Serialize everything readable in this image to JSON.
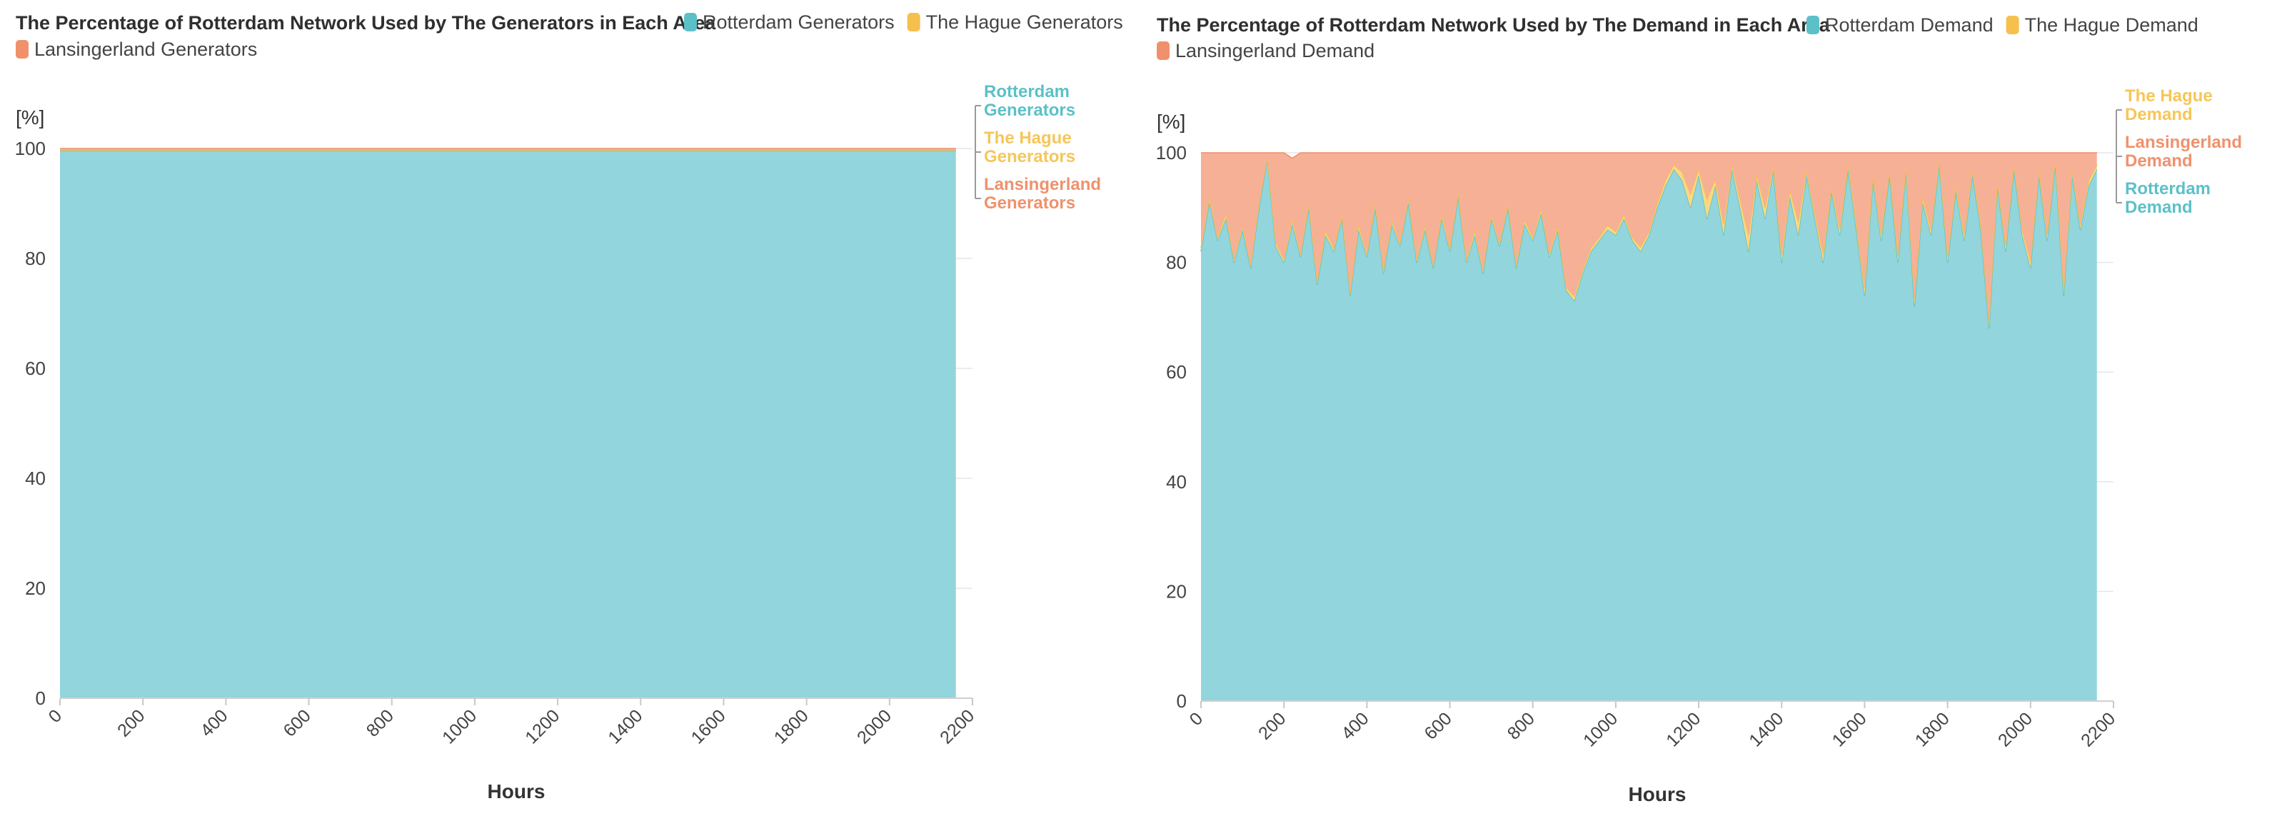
{
  "chart_data": [
    {
      "type": "area",
      "stacked": true,
      "title": "The Percentage of Rotterdam Network Used by The Generators in Each Area",
      "xlabel": "Hours",
      "ylabel": "[%]",
      "xlim": [
        0,
        2200
      ],
      "ylim": [
        0,
        100
      ],
      "xticks": [
        0,
        200,
        400,
        600,
        800,
        1000,
        1200,
        1400,
        1600,
        1800,
        2000,
        2200
      ],
      "yticks": [
        0,
        20,
        40,
        60,
        80,
        100
      ],
      "x_end": 2160,
      "grid": true,
      "legend": "top",
      "legend_items": [
        "Rotterdam Generators",
        "The Hague Generators",
        "Lansingerland Generators"
      ],
      "series": [
        {
          "name": "Rotterdam Generators",
          "color": "#93d5dc",
          "line_color": "#5cc0c8",
          "label_color": "#5cc0c8",
          "label_lines": [
            "Rotterdam",
            "Generators"
          ],
          "x": [
            0,
            2160
          ],
          "values": [
            99.6,
            99.6
          ]
        },
        {
          "name": "The Hague Generators",
          "color": "#fbd87f",
          "line_color": "#f5c04d",
          "label_color": "#f6c65a",
          "label_lines": [
            "The Hague",
            "Generators"
          ],
          "x": [
            0,
            2160
          ],
          "values": [
            0.1,
            0.1
          ]
        },
        {
          "name": "Lansingerland Generators",
          "color": "#f6b096",
          "line_color": "#f0916c",
          "label_color": "#f0916c",
          "label_lines": [
            "Lansingerland",
            "Generators"
          ],
          "x": [
            0,
            2160
          ],
          "values": [
            0.3,
            0.3
          ]
        }
      ],
      "end_label_order": [
        "Rotterdam Generators",
        "The Hague Generators",
        "Lansingerland Generators"
      ]
    },
    {
      "type": "area",
      "stacked": true,
      "title": "The Percentage of Rotterdam Network Used by The Demand in Each Area",
      "xlabel": "Hours",
      "ylabel": "[%]",
      "xlim": [
        0,
        2200
      ],
      "ylim": [
        0,
        100
      ],
      "xticks": [
        0,
        200,
        400,
        600,
        800,
        1000,
        1200,
        1400,
        1600,
        1800,
        2000,
        2200
      ],
      "yticks": [
        0,
        20,
        40,
        60,
        80,
        100
      ],
      "x_end": 2160,
      "grid": true,
      "legend": "top",
      "legend_items": [
        "Rotterdam Demand",
        "The Hague Demand",
        "Lansingerland Demand"
      ],
      "series": [
        {
          "name": "Rotterdam Demand",
          "color": "#93d5dc",
          "line_color": "#5cc0c8",
          "label_color": "#5cc0c8",
          "label_lines": [
            "Rotterdam",
            "Demand"
          ],
          "x": [
            0,
            20,
            40,
            60,
            80,
            100,
            120,
            140,
            160,
            180,
            200,
            220,
            240,
            260,
            280,
            300,
            320,
            340,
            360,
            380,
            400,
            420,
            440,
            460,
            480,
            500,
            520,
            540,
            560,
            580,
            600,
            620,
            640,
            660,
            680,
            700,
            720,
            740,
            760,
            780,
            800,
            820,
            840,
            860,
            880,
            900,
            920,
            940,
            960,
            980,
            1000,
            1020,
            1040,
            1060,
            1080,
            1100,
            1120,
            1140,
            1160,
            1180,
            1200,
            1220,
            1240,
            1260,
            1280,
            1300,
            1320,
            1340,
            1360,
            1380,
            1400,
            1420,
            1440,
            1460,
            1480,
            1500,
            1520,
            1540,
            1560,
            1580,
            1600,
            1620,
            1640,
            1660,
            1680,
            1700,
            1720,
            1740,
            1760,
            1780,
            1800,
            1820,
            1840,
            1860,
            1880,
            1900,
            1920,
            1940,
            1960,
            1980,
            2000,
            2020,
            2040,
            2060,
            2080,
            2100,
            2120,
            2140,
            2160
          ],
          "values": [
            82,
            91,
            84,
            88,
            80,
            86,
            79,
            90,
            99,
            83,
            80,
            87,
            81,
            90,
            76,
            85,
            82,
            88,
            74,
            86,
            81,
            90,
            78,
            87,
            83,
            91,
            80,
            86,
            79,
            88,
            82,
            92,
            80,
            85,
            78,
            88,
            83,
            90,
            79,
            87,
            84,
            89,
            81,
            86,
            75,
            73,
            78,
            82,
            84,
            86,
            85,
            88,
            84,
            82,
            85,
            90,
            94,
            97,
            95,
            90,
            96,
            88,
            94,
            85,
            97,
            90,
            82,
            95,
            88,
            97,
            80,
            92,
            85,
            96,
            88,
            80,
            93,
            85,
            97,
            86,
            74,
            95,
            84,
            96,
            80,
            97,
            72,
            91,
            85,
            98,
            80,
            93,
            84,
            96,
            86,
            68,
            94,
            82,
            97,
            85,
            79,
            96,
            84,
            98,
            74,
            96,
            86,
            94,
            97
          ]
        },
        {
          "name": "The Hague Demand",
          "color": "#fbd87f",
          "line_color": "#f5c04d",
          "label_color": "#f6c65a",
          "label_lines": [
            "The Hague",
            "Demand"
          ],
          "x": [
            0,
            20,
            40,
            60,
            80,
            100,
            120,
            140,
            160,
            180,
            200,
            220,
            240,
            260,
            280,
            300,
            320,
            340,
            360,
            380,
            400,
            420,
            440,
            460,
            480,
            500,
            520,
            540,
            560,
            580,
            600,
            620,
            640,
            660,
            680,
            700,
            720,
            740,
            760,
            780,
            800,
            820,
            840,
            860,
            880,
            900,
            920,
            940,
            960,
            980,
            1000,
            1020,
            1040,
            1060,
            1080,
            1100,
            1120,
            1140,
            1160,
            1180,
            1200,
            1220,
            1240,
            1260,
            1280,
            1300,
            1320,
            1340,
            1360,
            1380,
            1400,
            1420,
            1440,
            1460,
            1480,
            1500,
            1520,
            1540,
            1560,
            1580,
            1600,
            1620,
            1640,
            1660,
            1680,
            1700,
            1720,
            1740,
            1760,
            1780,
            1800,
            1820,
            1840,
            1860,
            1880,
            1900,
            1920,
            1940,
            1960,
            1980,
            2000,
            2020,
            2040,
            2060,
            2080,
            2100,
            2120,
            2140,
            2160
          ],
          "values": [
            0.6,
            0.8,
            0.5,
            0.9,
            0.6,
            0.7,
            0.5,
            0.8,
            0.3,
            0.7,
            0.6,
            0.8,
            0.5,
            0.7,
            0.6,
            0.8,
            0.5,
            0.7,
            0.6,
            0.9,
            0.5,
            0.8,
            0.6,
            0.7,
            0.5,
            0.8,
            0.6,
            0.7,
            0.5,
            0.8,
            0.6,
            0.7,
            0.5,
            0.8,
            0.6,
            0.7,
            0.5,
            0.8,
            0.6,
            0.7,
            0.5,
            0.8,
            0.6,
            0.7,
            0.5,
            0.8,
            0.6,
            0.7,
            0.5,
            0.8,
            0.6,
            0.7,
            0.5,
            0.8,
            0.6,
            0.7,
            1.0,
            0.8,
            1.5,
            2.5,
            1.0,
            3.5,
            1.2,
            2.0,
            0.8,
            1.5,
            3.0,
            1.0,
            2.0,
            0.8,
            1.5,
            1.2,
            2.5,
            0.8,
            1.0,
            1.5,
            0.8,
            1.2,
            0.9,
            1.1,
            1.4,
            0.9,
            1.2,
            0.8,
            1.3,
            0.7,
            1.5,
            1.0,
            0.9,
            0.8,
            1.2,
            0.9,
            1.1,
            0.7,
            1.0,
            1.4,
            0.8,
            1.2,
            0.9,
            1.0,
            1.3,
            0.8,
            1.1,
            0.9,
            1.2,
            0.8,
            1.0,
            0.9,
            0.8
          ]
        },
        {
          "name": "Lansingerland Demand",
          "color": "#f6b096",
          "line_color": "#f0916c",
          "label_color": "#f0916c",
          "label_lines": [
            "Lansingerland",
            "Demand"
          ],
          "x": [
            0,
            20,
            40,
            60,
            80,
            100,
            120,
            140,
            160,
            180,
            200,
            220,
            240,
            260,
            280,
            300,
            320,
            340,
            360,
            380,
            400,
            420,
            440,
            460,
            480,
            500,
            520,
            540,
            560,
            580,
            600,
            620,
            640,
            660,
            680,
            700,
            720,
            740,
            760,
            780,
            800,
            820,
            840,
            860,
            880,
            900,
            920,
            940,
            960,
            980,
            1000,
            1020,
            1040,
            1060,
            1080,
            1100,
            1120,
            1140,
            1160,
            1180,
            1200,
            1220,
            1240,
            1260,
            1280,
            1300,
            1320,
            1340,
            1360,
            1380,
            1400,
            1420,
            1440,
            1460,
            1480,
            1500,
            1520,
            1540,
            1560,
            1580,
            1600,
            1620,
            1640,
            1660,
            1680,
            1700,
            1720,
            1740,
            1760,
            1780,
            1800,
            1820,
            1840,
            1860,
            1880,
            1900,
            1920,
            1940,
            1960,
            1980,
            2000,
            2020,
            2040,
            2060,
            2080,
            2100,
            2120,
            2140,
            2160
          ],
          "values": [
            17.4,
            8.2,
            15.5,
            11.1,
            19.4,
            13.3,
            20.5,
            9.2,
            0.7,
            16.3,
            19.4,
            11.2,
            18.5,
            9.3,
            23.4,
            14.2,
            17.5,
            11.3,
            25.4,
            13.1,
            18.5,
            9.2,
            21.4,
            12.3,
            16.5,
            8.2,
            19.4,
            13.3,
            20.5,
            11.2,
            17.4,
            7.3,
            19.5,
            14.2,
            21.4,
            11.3,
            16.5,
            9.2,
            20.4,
            12.3,
            15.5,
            10.2,
            18.4,
            13.3,
            24.5,
            26.2,
            21.4,
            17.3,
            15.5,
            13.2,
            14.4,
            11.3,
            15.5,
            17.2,
            14.4,
            9.3,
            5.0,
            2.2,
            3.5,
            7.5,
            3.0,
            8.5,
            4.8,
            13.0,
            2.2,
            8.5,
            15.0,
            4.0,
            10.0,
            2.2,
            18.5,
            6.8,
            12.5,
            3.2,
            11.0,
            18.5,
            6.2,
            13.8,
            2.1,
            12.9,
            24.6,
            4.1,
            14.8,
            3.2,
            18.7,
            2.3,
            26.5,
            8.0,
            14.1,
            1.2,
            18.8,
            6.1,
            14.9,
            3.3,
            13.0,
            30.6,
            5.2,
            16.8,
            2.1,
            14.0,
            19.7,
            3.2,
            14.9,
            1.1,
            24.8,
            3.2,
            13.0,
            5.1,
            2.2
          ]
        }
      ],
      "end_label_order": [
        "The Hague Demand",
        "Lansingerland Demand",
        "Rotterdam Demand"
      ]
    }
  ]
}
